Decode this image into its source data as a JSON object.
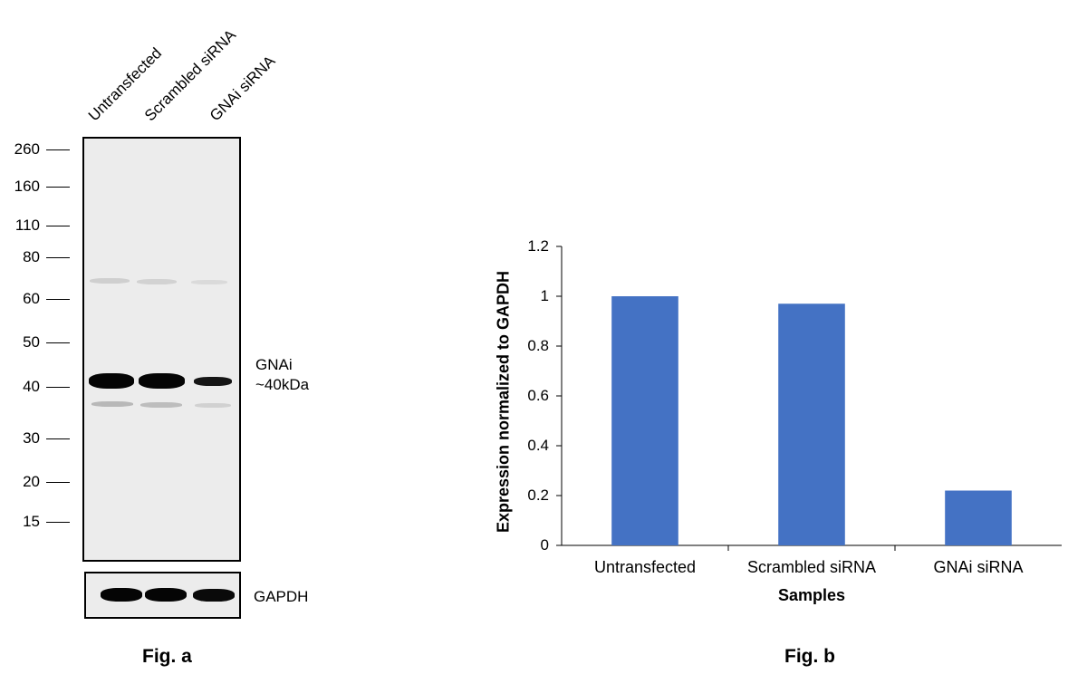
{
  "fig_a": {
    "label": "Fig. a",
    "lanes": [
      "Untransfected",
      "Scrambled siRNA",
      "GNAi siRNA"
    ],
    "mw_markers": [
      "260",
      "160",
      "110",
      "80",
      "60",
      "50",
      "40",
      "30",
      "20",
      "15"
    ],
    "target_label": [
      "GNAi",
      "~40kDa"
    ],
    "loading_control": "GAPDH"
  },
  "fig_b": {
    "label": "Fig. b"
  },
  "chart_data": {
    "type": "bar",
    "categories": [
      "Untransfected",
      "Scrambled siRNA",
      "GNAi siRNA"
    ],
    "values": [
      1.0,
      0.97,
      0.22
    ],
    "title": "",
    "xlabel": "Samples",
    "ylabel": "Expression normalized to GAPDH",
    "ylim": [
      0,
      1.2
    ],
    "yticks": [
      "0",
      "0.2",
      "0.4",
      "0.6",
      "0.8",
      "1",
      "1.2"
    ],
    "grid": false,
    "bar_color": "#4472C4"
  }
}
